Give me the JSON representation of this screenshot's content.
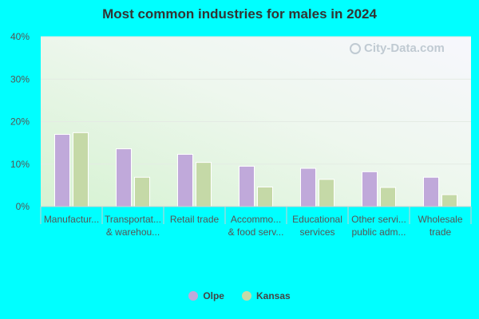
{
  "chart_data": {
    "type": "bar",
    "title": "Most common industries for males in 2024",
    "categories": [
      [
        "Manufactur..."
      ],
      [
        "Transportat...",
        "& warehou..."
      ],
      [
        "Retail trade"
      ],
      [
        "Accommo...",
        "& food serv..."
      ],
      [
        "Educational",
        "services"
      ],
      [
        "Other servi...",
        "public adm..."
      ],
      [
        "Wholesale",
        "trade"
      ]
    ],
    "series": [
      {
        "name": "Olpe",
        "color": "#c0a9da",
        "values": [
          17.0,
          13.6,
          12.3,
          9.5,
          9.0,
          8.2,
          6.9
        ]
      },
      {
        "name": "Kansas",
        "color": "#c5d9a7",
        "values": [
          17.4,
          6.9,
          10.4,
          4.6,
          6.4,
          4.5,
          2.8
        ]
      }
    ],
    "ylim": [
      0,
      40
    ],
    "yticks": [
      "0%",
      "10%",
      "20%",
      "30%",
      "40%"
    ],
    "ytick_values": [
      0,
      10,
      20,
      30,
      40
    ],
    "grid": true,
    "legend_position": "bottom-center"
  },
  "watermark": "City-Data.com"
}
